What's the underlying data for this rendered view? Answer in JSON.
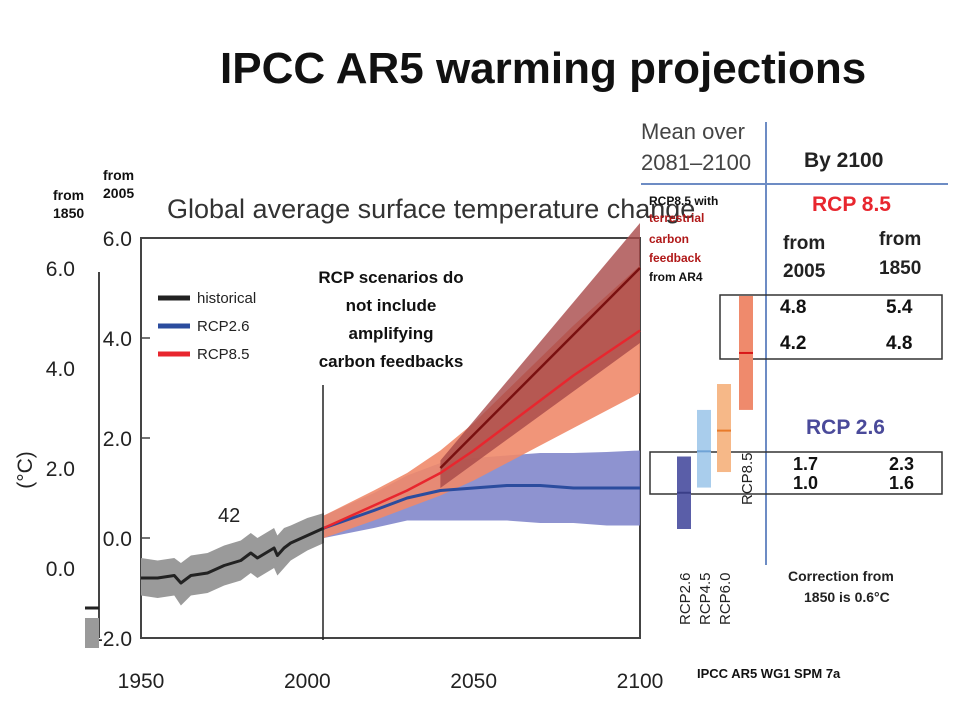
{
  "slide": {
    "title": "IPCC AR5 warming projections",
    "label_from_1850": "from\n1850",
    "label_from_2005": "from\n2005",
    "annotation": [
      "RCP scenarios do",
      "not include",
      "amplifying",
      "carbon feedbacks"
    ],
    "feedback_note": {
      "line1": "RCP8.5 with",
      "line2": "terrestrial",
      "line3": "carbon",
      "line4": "feedback",
      "line5": "from AR4"
    },
    "source": "IPCC AR5 WG1 SPM 7a",
    "correction": [
      "Correction from",
      "1850  is 0.6°C"
    ]
  },
  "chart_data": {
    "type": "line",
    "title": "Global average surface temperature change",
    "ylabel": "(°C)",
    "xlim": [
      1950,
      2100
    ],
    "ylim_2005": [
      -2.0,
      6.0
    ],
    "x_ticks": [
      "1950",
      "2000",
      "2050",
      "2100"
    ],
    "y_ticks_2005": [
      "-2.0",
      "0.0",
      "2.0",
      "4.0",
      "6.0"
    ],
    "y_ticks_1850": [
      "0.0",
      "2.0",
      "4.0",
      "6.0"
    ],
    "baseline_offset_1850": 0.6,
    "model_count_label": "42",
    "colors": {
      "historical": "#222222",
      "historical_band": "#9a9a9a",
      "rcp26": "#2b4c9e",
      "rcp26_band": "#7a80c8",
      "rcp85": "#e8262e",
      "rcp85_band": "#f08a6a",
      "rcp85_feedback": "#7a1010",
      "rcp85_feedback_band": "#a84848"
    },
    "series": [
      {
        "name": "historical",
        "x": [
          1950,
          1955,
          1960,
          1962,
          1965,
          1970,
          1975,
          1980,
          1983,
          1985,
          1990,
          1991,
          1993,
          1995,
          2000,
          2005
        ],
        "y": [
          -0.8,
          -0.8,
          -0.75,
          -0.9,
          -0.75,
          -0.7,
          -0.55,
          -0.45,
          -0.3,
          -0.4,
          -0.2,
          -0.35,
          -0.2,
          -0.1,
          0.05,
          0.2
        ],
        "lower": [
          -1.15,
          -1.2,
          -1.15,
          -1.35,
          -1.15,
          -1.1,
          -0.95,
          -0.85,
          -0.7,
          -0.8,
          -0.6,
          -0.75,
          -0.6,
          -0.45,
          -0.25,
          -0.1
        ],
        "upper": [
          -0.4,
          -0.45,
          -0.4,
          -0.5,
          -0.35,
          -0.3,
          -0.15,
          -0.05,
          0.1,
          0.0,
          0.2,
          0.05,
          0.2,
          0.25,
          0.4,
          0.5
        ]
      },
      {
        "name": "RCP2.6",
        "x": [
          2005,
          2020,
          2030,
          2040,
          2050,
          2060,
          2070,
          2080,
          2090,
          2100
        ],
        "y": [
          0.2,
          0.55,
          0.8,
          0.95,
          1.0,
          1.05,
          1.05,
          1.0,
          1.0,
          1.0
        ],
        "lower": [
          0.0,
          0.2,
          0.35,
          0.35,
          0.35,
          0.35,
          0.3,
          0.3,
          0.25,
          0.25
        ],
        "upper": [
          0.45,
          0.9,
          1.25,
          1.5,
          1.6,
          1.65,
          1.7,
          1.7,
          1.72,
          1.75
        ]
      },
      {
        "name": "RCP8.5",
        "x": [
          2005,
          2020,
          2030,
          2040,
          2050,
          2060,
          2070,
          2080,
          2090,
          2100
        ],
        "y": [
          0.2,
          0.65,
          0.95,
          1.3,
          1.75,
          2.25,
          2.75,
          3.25,
          3.7,
          4.15
        ],
        "lower": [
          0.0,
          0.35,
          0.6,
          0.85,
          1.15,
          1.5,
          1.85,
          2.2,
          2.55,
          2.9
        ],
        "upper": [
          0.45,
          0.95,
          1.3,
          1.75,
          2.3,
          2.95,
          3.6,
          4.25,
          4.85,
          5.45
        ]
      },
      {
        "name": "RCP8.5 with terrestrial carbon feedback from AR4",
        "x": [
          2040,
          2100
        ],
        "y": [
          1.4,
          5.4
        ],
        "lower": [
          1.0,
          3.9
        ],
        "upper": [
          1.55,
          6.3
        ]
      }
    ],
    "legend": [
      "historical",
      "RCP2.6",
      "RCP8.5"
    ],
    "summary_panel": {
      "title_lines": [
        "Mean over",
        "2081–2100"
      ],
      "heading": "By 2100",
      "col_headers_from2005": [
        "from",
        "2005"
      ],
      "col_headers_from1850": [
        "from",
        "1850"
      ],
      "rcp85_label": "RCP 8.5",
      "rcp85_rows": [
        [
          "4.8",
          "5.4"
        ],
        [
          "4.2",
          "4.8"
        ]
      ],
      "rcp26_label": "RCP 2.6",
      "rcp26_rows": [
        [
          "1.7",
          "2.3"
        ],
        [
          "1.0",
          "1.6"
        ]
      ],
      "bars": [
        {
          "name": "RCP2.6",
          "low": 0.3,
          "high": 1.7,
          "mean": 1.0,
          "color": "#5a5ea8",
          "mean_color": "#3a3e88"
        },
        {
          "name": "RCP4.5",
          "low": 1.1,
          "high": 2.6,
          "mean": 1.8,
          "color": "#a9cdec",
          "mean_color": "#6fa3d6"
        },
        {
          "name": "RCP6.0",
          "low": 1.4,
          "high": 3.1,
          "mean": 2.2,
          "color": "#f6b888",
          "mean_color": "#e87a2a"
        },
        {
          "name": "RCP8.5",
          "low": 2.6,
          "high": 4.8,
          "mean": 3.7,
          "color": "#ef8a6c",
          "mean_color": "#d81818"
        }
      ]
    }
  }
}
